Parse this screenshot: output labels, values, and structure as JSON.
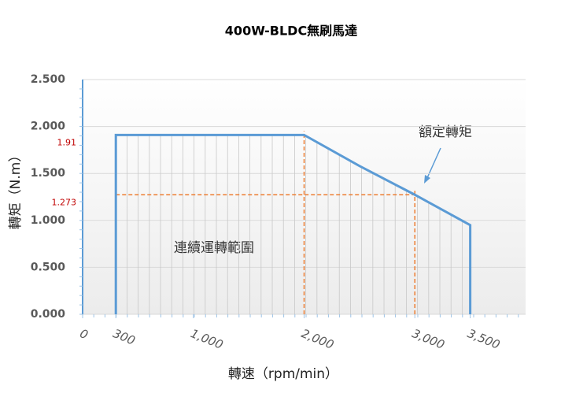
{
  "chart_data": {
    "type": "line",
    "title": "400W-BLDC無刷馬達",
    "x_label": "轉速（rpm/min）",
    "y_label": "轉矩（N.m）",
    "x": [
      300,
      300,
      2000,
      2500,
      3000,
      3500,
      3500
    ],
    "values": [
      0,
      1.91,
      1.91,
      1.58,
      1.273,
      0.95,
      0
    ],
    "color": "#5b9bd5",
    "xlim": [
      0,
      4000
    ],
    "xticks": [
      0,
      300,
      {
        "value": 1000,
        "label": "1,000"
      },
      {
        "value": 2000,
        "label": "2,000"
      },
      {
        "value": 3000,
        "label": "3,000"
      },
      {
        "value": 3500,
        "label": "3,500"
      }
    ],
    "ylim": [
      0,
      2.5
    ],
    "yticks": [
      {
        "value": 0,
        "label": "0.000"
      },
      {
        "value": 0.5,
        "label": "0.500"
      },
      {
        "value": 1,
        "label": "1.000"
      },
      {
        "value": 1.5,
        "label": "1.500"
      },
      {
        "value": 2,
        "label": "2.000"
      },
      {
        "value": 2.5,
        "label": "2.500"
      }
    ],
    "grid": true,
    "ref_lines": [
      {
        "x": 2000,
        "y": 1.91
      },
      {
        "x": 3000,
        "y": 1.273
      }
    ],
    "ref_color": "#ed7d31",
    "annotations": [
      "額定轉矩",
      "連續運轉範圍"
    ]
  }
}
